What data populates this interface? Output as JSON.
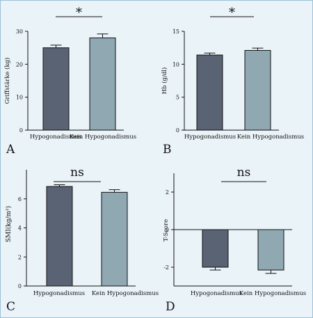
{
  "figure": {
    "background": "#eaf3f8",
    "bar_colors": [
      "#5a6374",
      "#8fa8b2"
    ]
  },
  "chart_data": [
    {
      "panel": "A",
      "type": "bar",
      "categories": [
        "Hypogonadismus",
        "Kein Hypogonadismus"
      ],
      "values": [
        25.0,
        28.0
      ],
      "errors": [
        0.8,
        1.2
      ],
      "ylabel": "Griffstärke (kg)",
      "ylim": [
        0,
        30
      ],
      "yticks": [
        0,
        10,
        20,
        30
      ],
      "significance": "*",
      "grid": false
    },
    {
      "panel": "B",
      "type": "bar",
      "categories": [
        "Hypogonadismus",
        "Kein Hypogonadismus"
      ],
      "values": [
        11.4,
        12.1
      ],
      "errors": [
        0.3,
        0.35
      ],
      "ylabel": "Hb (g/dl)",
      "ylim": [
        0,
        15
      ],
      "yticks": [
        0,
        5,
        10,
        15
      ],
      "significance": "*",
      "grid": false
    },
    {
      "panel": "C",
      "type": "bar",
      "categories": [
        "Hypogonadismus",
        "Kein Hypogonadismus"
      ],
      "values": [
        6.85,
        6.45
      ],
      "errors": [
        0.12,
        0.18
      ],
      "ylabel": "SMI(kg/m²)",
      "ylim": [
        0,
        8
      ],
      "yticks": [
        0,
        2,
        4,
        6
      ],
      "significance": "ns",
      "grid": false
    },
    {
      "panel": "D",
      "type": "bar",
      "categories": [
        "Hypogonadismus",
        "Kein Hypogonadismus"
      ],
      "values": [
        -2.0,
        -2.15
      ],
      "errors": [
        0.15,
        0.18
      ],
      "ylabel": "T-Score",
      "ylim": [
        -3,
        3
      ],
      "yticks": [
        -2,
        0,
        2
      ],
      "significance": "ns",
      "grid": false
    }
  ]
}
